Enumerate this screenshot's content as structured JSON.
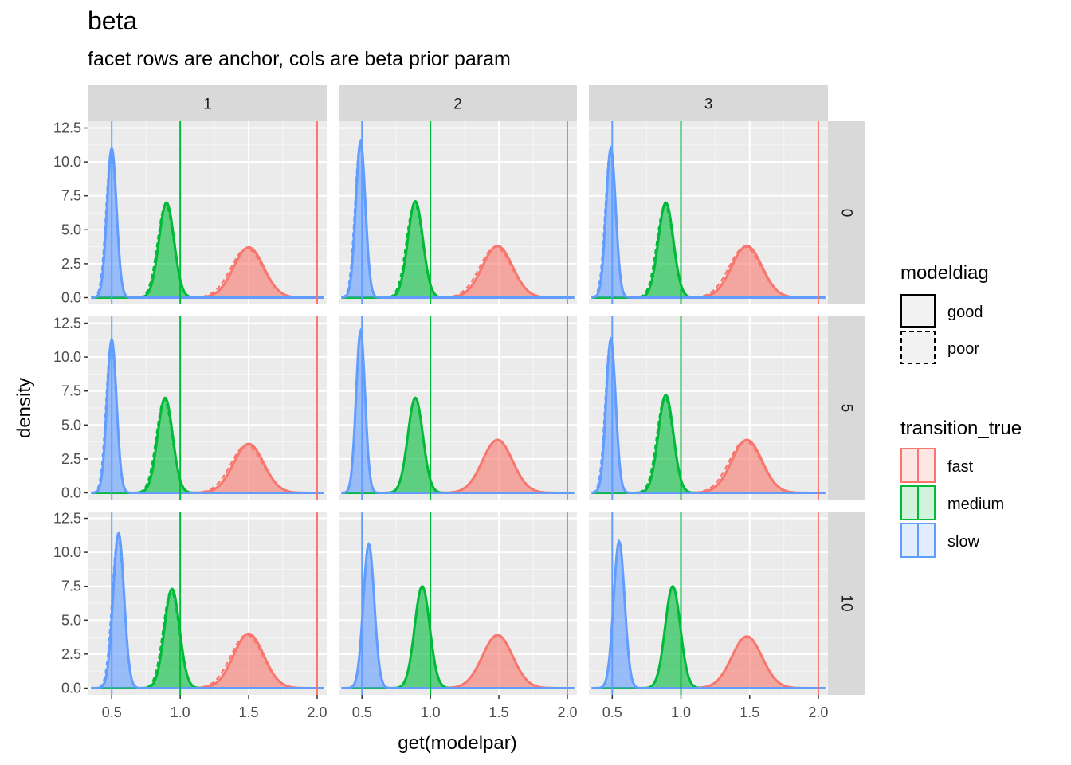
{
  "chart_data": {
    "type": "area",
    "title": "beta",
    "subtitle": "facet rows are anchor, cols are beta prior param",
    "xlabel": "get(modelpar)",
    "ylabel": "density",
    "xlim": [
      0.33,
      2.07
    ],
    "ylim": [
      -0.5,
      13.0
    ],
    "x_ticks": [
      "0.5",
      "1.0",
      "1.5",
      "2.0"
    ],
    "y_ticks": [
      "0.0",
      "2.5",
      "5.0",
      "7.5",
      "10.0",
      "12.5"
    ],
    "grid": true,
    "facet_cols": [
      "1",
      "2",
      "3"
    ],
    "facet_rows": [
      "0",
      "5",
      "10"
    ],
    "colors": {
      "fast": "#F8766D",
      "medium": "#00BA38",
      "slow": "#619CFF"
    },
    "true_values": {
      "slow": 0.5,
      "medium": 1.0,
      "fast": 2.0
    },
    "legend": {
      "position": "right",
      "modeldiag": {
        "title": "modeldiag",
        "entries": [
          {
            "label": "good",
            "linetype": "solid"
          },
          {
            "label": "poor",
            "linetype": "dashed"
          }
        ]
      },
      "transition_true": {
        "title": "transition_true",
        "entries": [
          "fast",
          "medium",
          "slow"
        ]
      }
    },
    "panels": [
      {
        "row": "0",
        "col": "1",
        "peaks": {
          "slow": {
            "mean": 0.5,
            "sd": 0.035,
            "height": 11.0
          },
          "medium": {
            "mean": 0.9,
            "sd": 0.055,
            "height": 7.0
          },
          "fast": {
            "mean": 1.5,
            "sd": 0.11,
            "height": 3.7
          }
        },
        "poor": true
      },
      {
        "row": "0",
        "col": "2",
        "peaks": {
          "slow": {
            "mean": 0.49,
            "sd": 0.035,
            "height": 11.5
          },
          "medium": {
            "mean": 0.89,
            "sd": 0.055,
            "height": 7.1
          },
          "fast": {
            "mean": 1.49,
            "sd": 0.11,
            "height": 3.8
          }
        },
        "poor": true
      },
      {
        "row": "0",
        "col": "3",
        "peaks": {
          "slow": {
            "mean": 0.49,
            "sd": 0.035,
            "height": 11.0
          },
          "medium": {
            "mean": 0.89,
            "sd": 0.055,
            "height": 7.0
          },
          "fast": {
            "mean": 1.48,
            "sd": 0.11,
            "height": 3.8
          }
        },
        "poor": true
      },
      {
        "row": "5",
        "col": "1",
        "peaks": {
          "slow": {
            "mean": 0.5,
            "sd": 0.035,
            "height": 11.3
          },
          "medium": {
            "mean": 0.89,
            "sd": 0.055,
            "height": 7.0
          },
          "fast": {
            "mean": 1.5,
            "sd": 0.11,
            "height": 3.6
          }
        },
        "poor": true
      },
      {
        "row": "5",
        "col": "2",
        "peaks": {
          "slow": {
            "mean": 0.49,
            "sd": 0.033,
            "height": 11.9
          },
          "medium": {
            "mean": 0.89,
            "sd": 0.055,
            "height": 7.0
          },
          "fast": {
            "mean": 1.49,
            "sd": 0.11,
            "height": 3.9
          }
        },
        "poor": false
      },
      {
        "row": "5",
        "col": "3",
        "peaks": {
          "slow": {
            "mean": 0.49,
            "sd": 0.035,
            "height": 11.3
          },
          "medium": {
            "mean": 0.89,
            "sd": 0.055,
            "height": 7.2
          },
          "fast": {
            "mean": 1.48,
            "sd": 0.11,
            "height": 3.9
          }
        },
        "poor": true
      },
      {
        "row": "10",
        "col": "1",
        "peaks": {
          "slow": {
            "mean": 0.55,
            "sd": 0.04,
            "height": 11.4
          },
          "medium": {
            "mean": 0.94,
            "sd": 0.055,
            "height": 7.3
          },
          "fast": {
            "mean": 1.5,
            "sd": 0.11,
            "height": 4.0
          }
        },
        "poor": true
      },
      {
        "row": "10",
        "col": "2",
        "peaks": {
          "slow": {
            "mean": 0.55,
            "sd": 0.04,
            "height": 10.6
          },
          "medium": {
            "mean": 0.94,
            "sd": 0.055,
            "height": 7.5
          },
          "fast": {
            "mean": 1.49,
            "sd": 0.11,
            "height": 3.9
          }
        },
        "poor": false
      },
      {
        "row": "10",
        "col": "3",
        "peaks": {
          "slow": {
            "mean": 0.55,
            "sd": 0.04,
            "height": 10.8
          },
          "medium": {
            "mean": 0.94,
            "sd": 0.055,
            "height": 7.5
          },
          "fast": {
            "mean": 1.48,
            "sd": 0.11,
            "height": 3.8
          }
        },
        "poor": false
      }
    ]
  }
}
